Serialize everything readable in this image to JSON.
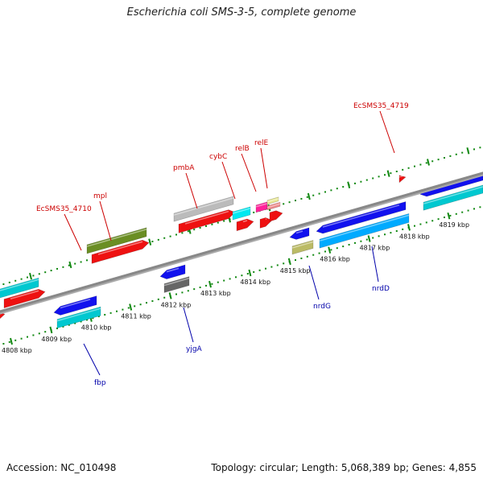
{
  "title": "Escherichia coli SMS-3-5, complete genome",
  "footer": {
    "accession": "Accession: NC_010498",
    "summary": "Topology: circular; Length: 5,068,389 bp; Genes: 4,855"
  },
  "colors": {
    "backbone": "#888888",
    "tick": "#118811",
    "forward_label": "#cc0000",
    "reverse_label": "#0000aa"
  },
  "ticks": [
    {
      "kbp": 4808,
      "label": "4808 kbp"
    },
    {
      "kbp": 4809,
      "label": "4809 kbp"
    },
    {
      "kbp": 4810,
      "label": "4810 kbp"
    },
    {
      "kbp": 4811,
      "label": "4811 kbp"
    },
    {
      "kbp": 4812,
      "label": "4812 kbp"
    },
    {
      "kbp": 4813,
      "label": "4813 kbp"
    },
    {
      "kbp": 4814,
      "label": "4814 kbp"
    },
    {
      "kbp": 4815,
      "label": "4815 kbp"
    },
    {
      "kbp": 4816,
      "label": "4816 kbp"
    },
    {
      "kbp": 4817,
      "label": "4817 kbp"
    },
    {
      "kbp": 4818,
      "label": "4818 kbp"
    },
    {
      "kbp": 4819,
      "label": "4819 kbp"
    }
  ],
  "gene_labels": {
    "forward": [
      "EcSMS35_4710",
      "mpl",
      "pmbA",
      "cybC",
      "relB",
      "relE",
      "EcSMS35_4719"
    ],
    "reverse": [
      "fbp",
      "yjgA",
      "nrdG",
      "nrdD"
    ]
  }
}
